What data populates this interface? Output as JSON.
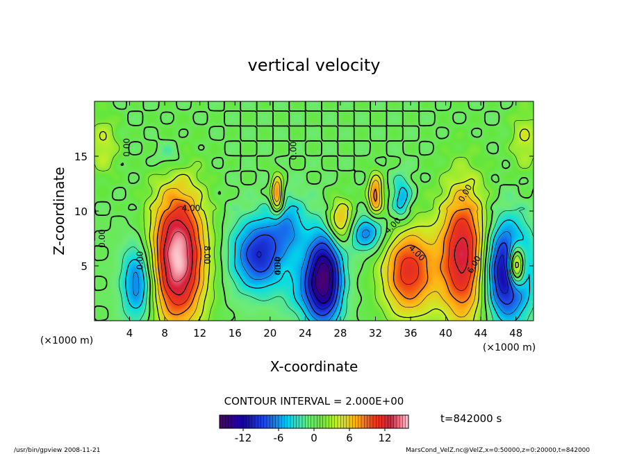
{
  "chart_data": {
    "type": "contour",
    "title": "vertical velocity",
    "xlabel": "X-coordinate",
    "ylabel": "Z-coordinate",
    "x_unit_left": "(×1000 m)",
    "x_unit_right": "(×1000 m)",
    "xlim": [
      0,
      50
    ],
    "ylim": [
      0,
      20
    ],
    "x_ticks": [
      4,
      8,
      12,
      16,
      20,
      24,
      28,
      32,
      36,
      40,
      44,
      48
    ],
    "y_ticks": [
      5,
      10,
      15
    ],
    "contour_interval_text": "CONTOUR INTERVAL = 2.000E+00",
    "time_text": "t=842000 s",
    "colorbar": {
      "min": -16,
      "max": 16,
      "ticks": [
        -12,
        -6,
        0,
        6,
        12
      ]
    },
    "contour_labels": [
      "0.00",
      "0.00",
      "0.00",
      "4.00",
      "8.00",
      "0.00",
      "4.00",
      "4.00",
      "4.00",
      "4.00",
      "6.00",
      "0.00"
    ],
    "cells": [
      {
        "kind": "updraft",
        "x": 9.5,
        "z": 5.8,
        "peak": 16,
        "sx": 2.2,
        "sz": 4.5
      },
      {
        "kind": "updraft",
        "x": 35.8,
        "z": 4.5,
        "peak": 11,
        "sx": 2.2,
        "sz": 3.0
      },
      {
        "kind": "updraft",
        "x": 42.0,
        "z": 6.0,
        "peak": 13,
        "sx": 1.9,
        "sz": 4.5
      },
      {
        "kind": "updraft",
        "x": 48.0,
        "z": 5.0,
        "peak": 16,
        "sx": 0.7,
        "sz": 1.3
      },
      {
        "kind": "updraft",
        "x": 20.8,
        "z": 11.5,
        "peak": 10,
        "sx": 0.5,
        "sz": 1.2
      },
      {
        "kind": "updraft",
        "x": 28.0,
        "z": 9.0,
        "peak": 8,
        "sx": 1.1,
        "sz": 1.5
      },
      {
        "kind": "updraft",
        "x": 32.0,
        "z": 11.5,
        "peak": 9,
        "sx": 0.6,
        "sz": 1.3
      },
      {
        "kind": "downdraft",
        "x": 5.0,
        "z": 3.5,
        "peak": -8,
        "sx": 1.3,
        "sz": 2.5
      },
      {
        "kind": "downdraft",
        "x": 19.0,
        "z": 6.0,
        "peak": -9,
        "sx": 1.6,
        "sz": 2.2
      },
      {
        "kind": "downdraft",
        "x": 26.2,
        "z": 4.0,
        "peak": -14,
        "sx": 1.4,
        "sz": 3.0
      },
      {
        "kind": "downdraft",
        "x": 31.0,
        "z": 8.0,
        "peak": -7,
        "sx": 1.6,
        "sz": 1.2
      },
      {
        "kind": "downdraft",
        "x": 47.0,
        "z": 4.5,
        "peak": -14,
        "sx": 1.8,
        "sz": 3.0
      },
      {
        "kind": "downdraft",
        "x": 8.5,
        "z": 15.0,
        "peak": -3,
        "sx": 1.2,
        "sz": 1.0
      },
      {
        "kind": "downdraft",
        "x": 35.0,
        "z": 11.0,
        "peak": -6,
        "sx": 0.8,
        "sz": 1.5
      },
      {
        "kind": "downdraft",
        "x": 22.0,
        "z": 8.5,
        "peak": -6,
        "sx": 1.5,
        "sz": 2.0
      },
      {
        "kind": "downdraft",
        "x": 16.5,
        "z": 6.0,
        "peak": -3,
        "sx": 1.5,
        "sz": 2.5
      },
      {
        "kind": "updraft",
        "x": 1.0,
        "z": 16.0,
        "peak": 4,
        "sx": 1.2,
        "sz": 2.0
      },
      {
        "kind": "updraft",
        "x": 49.0,
        "z": 16.5,
        "peak": 4,
        "sx": 1.2,
        "sz": 2.0
      },
      {
        "kind": "downdraft",
        "x": 24.0,
        "z": 3.0,
        "peak": -4,
        "sx": 2.0,
        "sz": 2.0
      }
    ]
  },
  "footer": {
    "left": "/usr/bin/gpview   2008-11-21",
    "right": "MarsCond_VelZ.nc@VelZ,x=0:50000,z=0:20000,t=842000"
  },
  "colors": {
    "background": "#ffffff",
    "frame": "#000000"
  }
}
